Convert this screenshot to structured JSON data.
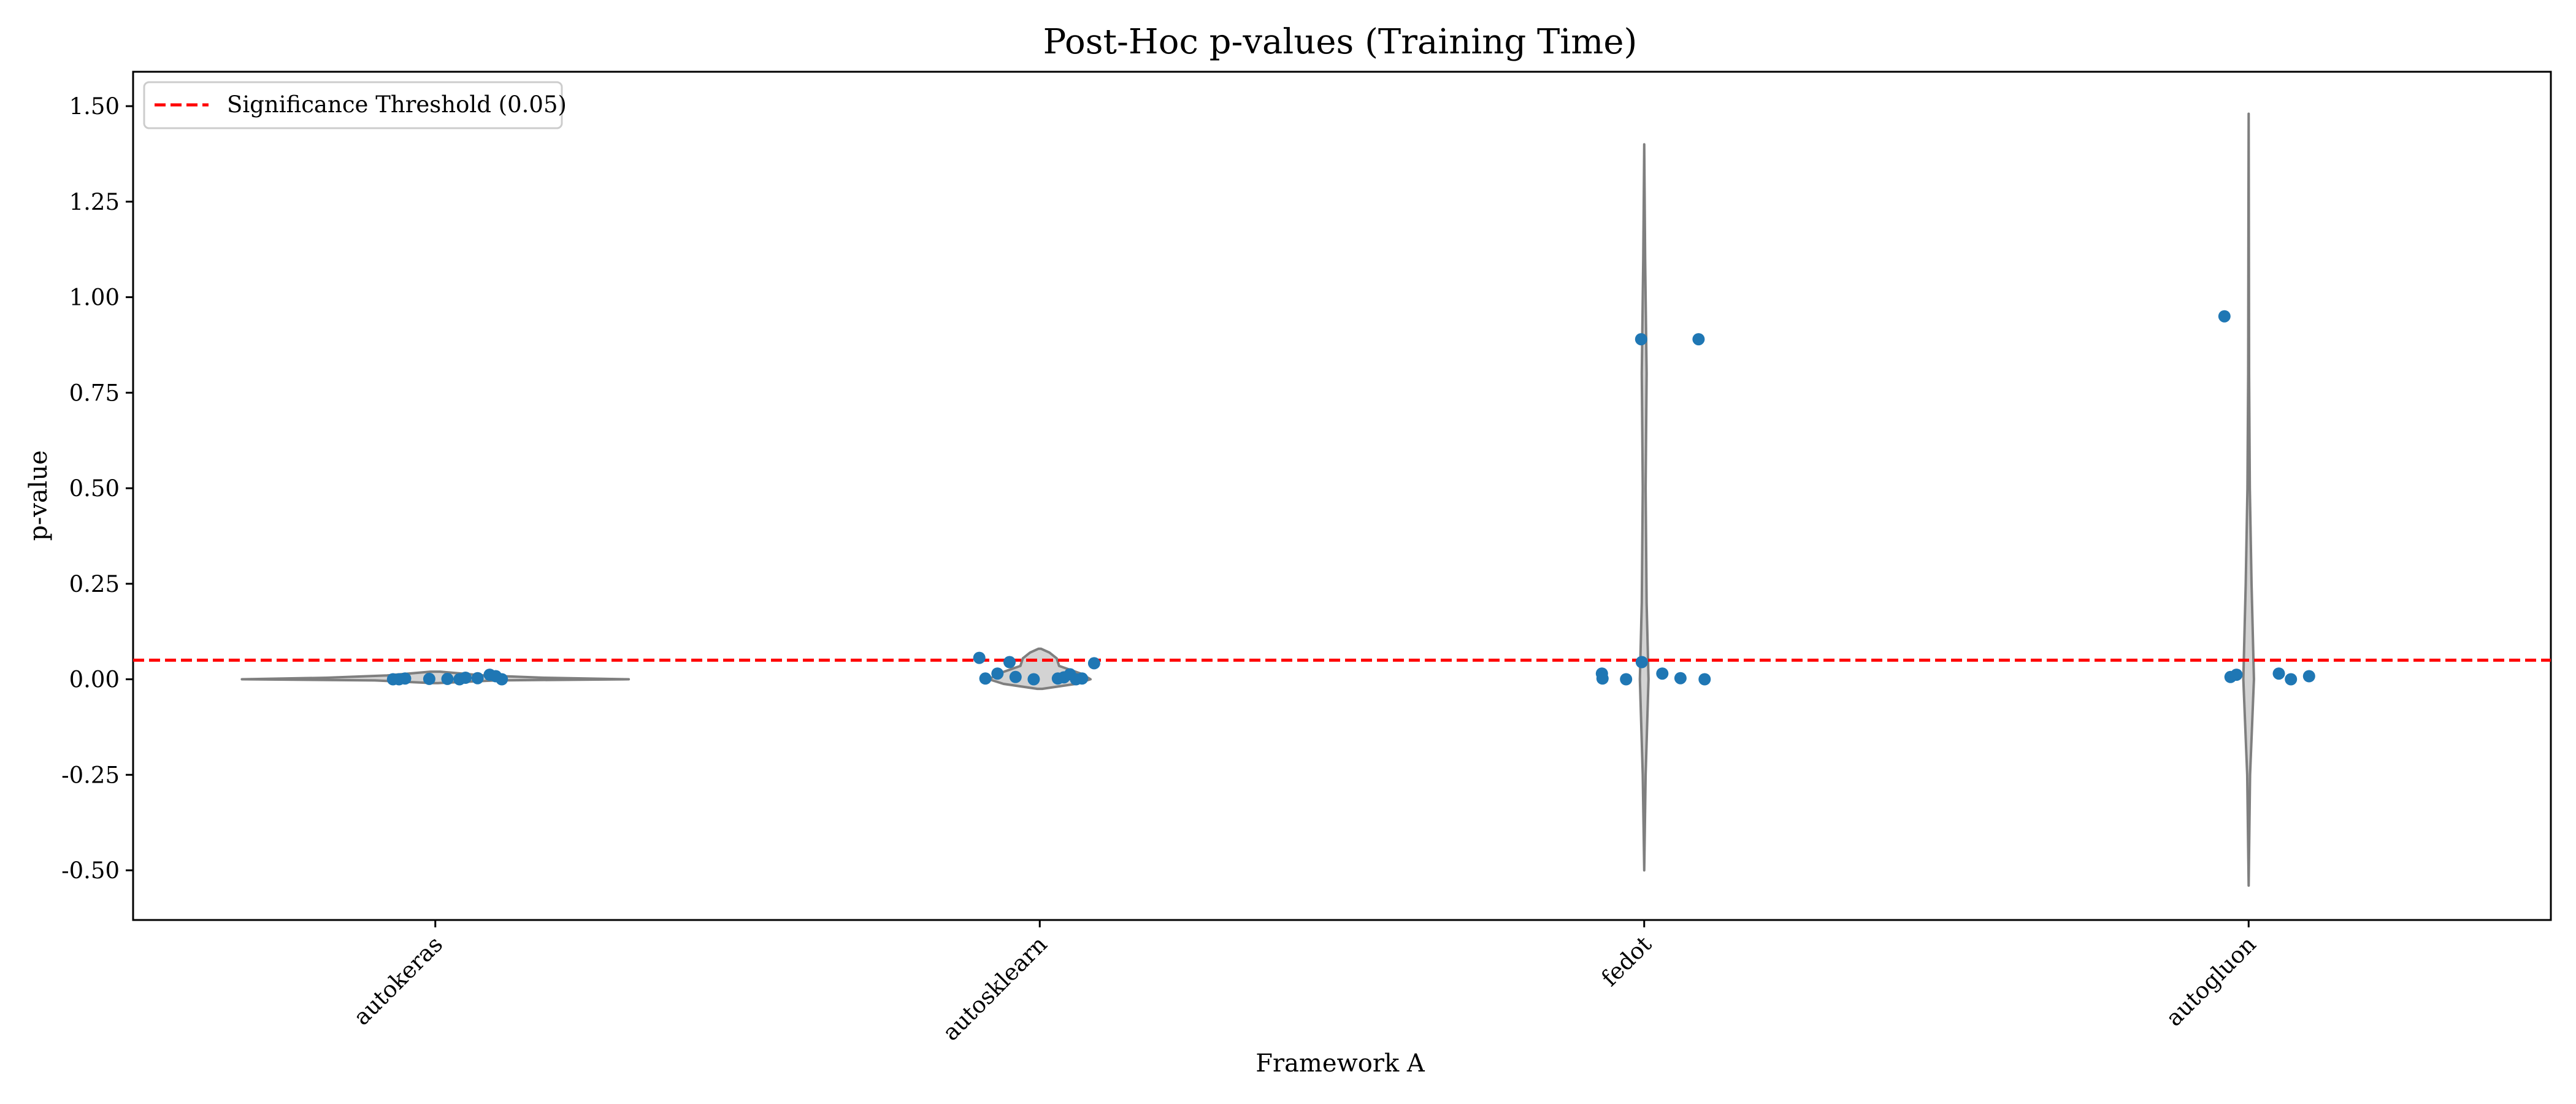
{
  "chart_data": {
    "type": "violin",
    "title": "Post-Hoc p-values (Training Time)",
    "xlabel": "Framework A",
    "ylabel": "p-value",
    "ylim": [
      -0.63,
      1.59
    ],
    "yticks": [
      -0.5,
      -0.25,
      0.0,
      0.25,
      0.5,
      0.75,
      1.0,
      1.25,
      1.5
    ],
    "ytick_labels": [
      "-0.50",
      "-0.25",
      "0.00",
      "0.25",
      "0.50",
      "0.75",
      "1.00",
      "1.25",
      "1.50"
    ],
    "categories": [
      "autokeras",
      "autosklearn",
      "fedot",
      "autogluon"
    ],
    "threshold": {
      "value": 0.05,
      "label": "Significance Threshold (0.05)",
      "color": "#ff0000"
    },
    "legend_position": "top-left",
    "grid": false,
    "violin_color": "#d3d3d3",
    "violin_edge_color": "#7f7f7f",
    "point_color": "#1f77b4",
    "violins": [
      {
        "category": "autokeras",
        "y_min": -0.01,
        "y_max": 0.02,
        "profile": [
          [
            -0.01,
            0.01
          ],
          [
            -0.003,
            0.25
          ],
          [
            0.0,
            0.8
          ],
          [
            0.004,
            0.45
          ],
          [
            0.01,
            0.2
          ],
          [
            0.02,
            0.02
          ]
        ]
      },
      {
        "category": "autosklearn",
        "y_min": -0.025,
        "y_max": 0.08,
        "profile": [
          [
            -0.025,
            0.01
          ],
          [
            -0.012,
            0.15
          ],
          [
            0.0,
            0.21
          ],
          [
            0.015,
            0.17
          ],
          [
            0.035,
            0.08
          ],
          [
            0.055,
            0.07
          ],
          [
            0.07,
            0.04
          ],
          [
            0.08,
            0.005
          ]
        ]
      },
      {
        "category": "fedot",
        "y_min": -0.5,
        "y_max": 1.4,
        "profile": [
          [
            -0.5,
            0.0
          ],
          [
            -0.25,
            0.006
          ],
          [
            0.0,
            0.018
          ],
          [
            0.2,
            0.01
          ],
          [
            0.5,
            0.006
          ],
          [
            0.8,
            0.01
          ],
          [
            1.1,
            0.004
          ],
          [
            1.4,
            0.0
          ]
        ]
      },
      {
        "category": "autogluon",
        "y_min": -0.54,
        "y_max": 1.48,
        "profile": [
          [
            -0.54,
            0.0
          ],
          [
            -0.25,
            0.006
          ],
          [
            0.0,
            0.022
          ],
          [
            0.25,
            0.012
          ],
          [
            0.5,
            0.005
          ],
          [
            0.8,
            0.002
          ],
          [
            1.2,
            0.001
          ],
          [
            1.48,
            0.0
          ]
        ]
      }
    ],
    "points": [
      {
        "category": "autokeras",
        "offsets": [
          -0.07,
          -0.06,
          -0.05,
          -0.01,
          0.02,
          0.04,
          0.05,
          0.07,
          0.09,
          0.1,
          0.11
        ],
        "values": [
          0.0,
          0.0,
          0.002,
          0.001,
          0.001,
          0.0,
          0.004,
          0.003,
          0.012,
          0.008,
          0.0
        ]
      },
      {
        "category": "autosklearn",
        "offsets": [
          -0.1,
          -0.09,
          -0.07,
          -0.05,
          -0.04,
          -0.01,
          0.03,
          0.04,
          0.05,
          0.06,
          0.07,
          0.09
        ],
        "values": [
          0.056,
          0.002,
          0.015,
          0.045,
          0.006,
          0.0,
          0.002,
          0.005,
          0.013,
          0.0,
          0.002,
          0.042
        ]
      },
      {
        "category": "fedot",
        "offsets": [
          -0.07,
          -0.069,
          -0.03,
          -0.005,
          -0.004,
          0.03,
          0.06,
          0.09,
          0.1
        ],
        "values": [
          0.015,
          0.002,
          0.0,
          0.89,
          0.045,
          0.015,
          0.003,
          0.89,
          0.0
        ]
      },
      {
        "category": "autogluon",
        "offsets": [
          -0.04,
          -0.03,
          -0.02,
          0.05,
          0.07,
          0.1
        ],
        "values": [
          0.95,
          0.006,
          0.012,
          0.015,
          0.0,
          0.008
        ]
      }
    ]
  }
}
